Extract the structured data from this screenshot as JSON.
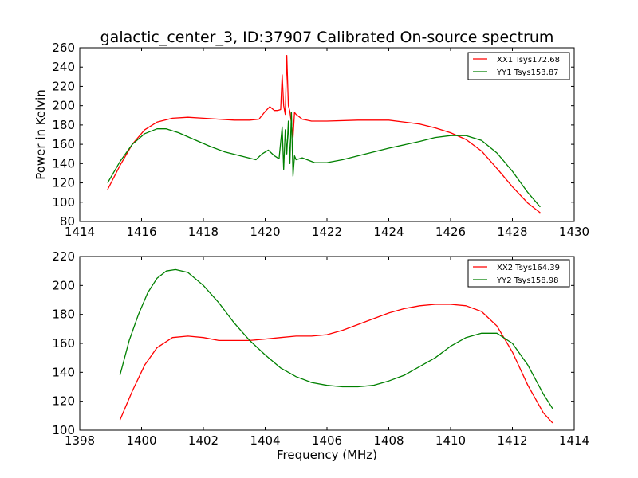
{
  "chart_data": [
    {
      "type": "line",
      "title": "galactic_center_3, ID:37907 Calibrated On-source spectrum",
      "xlabel": "",
      "ylabel": "Power in Kelvin",
      "xlim": [
        1414,
        1430
      ],
      "ylim": [
        80,
        260
      ],
      "xticks": [
        1414,
        1416,
        1418,
        1420,
        1422,
        1424,
        1426,
        1428,
        1430
      ],
      "yticks": [
        80,
        100,
        120,
        140,
        160,
        180,
        200,
        220,
        240,
        260
      ],
      "grid": false,
      "legend_position": "top-right",
      "series": [
        {
          "name": "XX1 Tsys172.68",
          "color": "#ff0000",
          "x": [
            1414.9,
            1415.3,
            1415.7,
            1416.1,
            1416.5,
            1417.0,
            1417.5,
            1418.0,
            1418.5,
            1419.0,
            1419.5,
            1419.8,
            1420.0,
            1420.15,
            1420.3,
            1420.4,
            1420.5,
            1420.55,
            1420.6,
            1420.65,
            1420.7,
            1420.75,
            1420.8,
            1420.85,
            1420.9,
            1420.95,
            1421.0,
            1421.2,
            1421.5,
            1422.0,
            1423.0,
            1424.0,
            1425.0,
            1425.5,
            1426.0,
            1426.5,
            1427.0,
            1427.5,
            1428.0,
            1428.5,
            1428.9
          ],
          "values": [
            113,
            138,
            160,
            175,
            183,
            187,
            188,
            187,
            186,
            185,
            185,
            186,
            194,
            199,
            195,
            195,
            196,
            232,
            200,
            191,
            252,
            200,
            194,
            182,
            167,
            193,
            191,
            186,
            184,
            184,
            185,
            185,
            181,
            177,
            172,
            165,
            153,
            135,
            116,
            99,
            89
          ]
        },
        {
          "name": "YY1 Tsys153.87",
          "color": "#008000",
          "x": [
            1414.9,
            1415.3,
            1415.7,
            1416.1,
            1416.5,
            1416.8,
            1417.2,
            1417.7,
            1418.2,
            1418.7,
            1419.2,
            1419.7,
            1419.9,
            1420.1,
            1420.3,
            1420.45,
            1420.55,
            1420.6,
            1420.65,
            1420.7,
            1420.75,
            1420.8,
            1420.85,
            1420.9,
            1420.95,
            1421.0,
            1421.2,
            1421.6,
            1422.0,
            1422.5,
            1423.0,
            1424.0,
            1425.0,
            1425.5,
            1426.0,
            1426.5,
            1427.0,
            1427.5,
            1428.0,
            1428.5,
            1428.9
          ],
          "values": [
            120,
            142,
            160,
            171,
            176,
            176,
            172,
            165,
            158,
            152,
            148,
            144,
            150,
            154,
            148,
            145,
            178,
            134,
            175,
            150,
            184,
            140,
            193,
            127,
            148,
            144,
            146,
            141,
            141,
            144,
            148,
            156,
            163,
            167,
            169,
            169,
            164,
            151,
            132,
            110,
            95
          ]
        }
      ]
    },
    {
      "type": "line",
      "title": "",
      "xlabel": "Frequency (MHz)",
      "ylabel": "",
      "xlim": [
        1398,
        1414
      ],
      "ylim": [
        100,
        220
      ],
      "xticks": [
        1398,
        1400,
        1402,
        1404,
        1406,
        1408,
        1410,
        1412,
        1414
      ],
      "yticks": [
        100,
        120,
        140,
        160,
        180,
        200,
        220
      ],
      "grid": false,
      "legend_position": "top-right",
      "series": [
        {
          "name": "XX2 Tsys164.39",
          "color": "#ff0000",
          "x": [
            1399.3,
            1399.7,
            1400.1,
            1400.5,
            1401.0,
            1401.5,
            1402.0,
            1402.5,
            1403.0,
            1403.5,
            1404.0,
            1404.5,
            1405.0,
            1405.5,
            1406.0,
            1406.5,
            1407.0,
            1407.5,
            1408.0,
            1408.5,
            1409.0,
            1409.5,
            1410.0,
            1410.5,
            1411.0,
            1411.5,
            1412.0,
            1412.5,
            1413.0,
            1413.3
          ],
          "values": [
            107,
            127,
            145,
            157,
            164,
            165,
            164,
            162,
            162,
            162,
            163,
            164,
            165,
            165,
            166,
            169,
            173,
            177,
            181,
            184,
            186,
            187,
            187,
            186,
            182,
            172,
            154,
            131,
            112,
            105
          ]
        },
        {
          "name": "YY2 Tsys158.98",
          "color": "#008000",
          "x": [
            1399.3,
            1399.6,
            1399.9,
            1400.2,
            1400.5,
            1400.8,
            1401.1,
            1401.5,
            1402.0,
            1402.5,
            1403.0,
            1403.5,
            1404.0,
            1404.5,
            1405.0,
            1405.5,
            1406.0,
            1406.5,
            1407.0,
            1407.5,
            1408.0,
            1408.5,
            1409.0,
            1409.5,
            1410.0,
            1410.5,
            1411.0,
            1411.5,
            1412.0,
            1412.5,
            1413.0,
            1413.3
          ],
          "values": [
            138,
            162,
            180,
            195,
            205,
            210,
            211,
            209,
            200,
            188,
            174,
            162,
            152,
            143,
            137,
            133,
            131,
            130,
            130,
            131,
            134,
            138,
            144,
            150,
            158,
            164,
            167,
            167,
            160,
            145,
            125,
            115
          ]
        }
      ]
    }
  ]
}
